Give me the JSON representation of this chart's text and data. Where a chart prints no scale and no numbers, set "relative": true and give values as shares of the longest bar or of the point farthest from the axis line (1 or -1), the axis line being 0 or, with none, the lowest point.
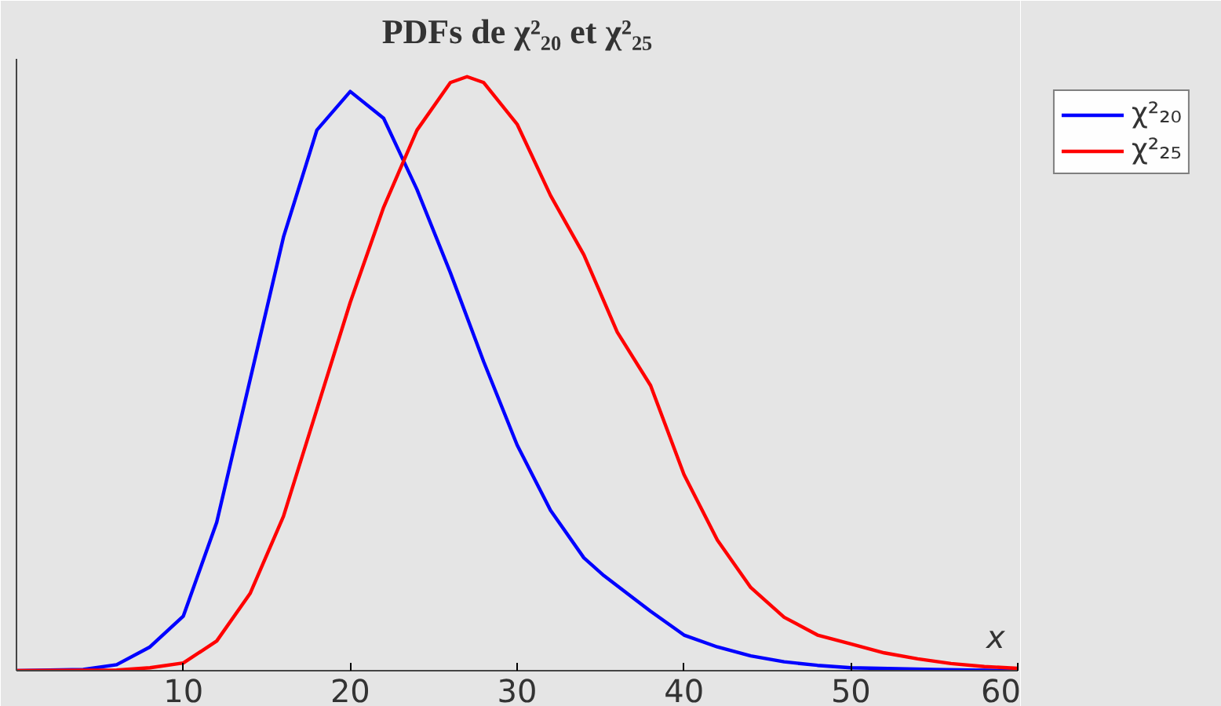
{
  "chart_data": {
    "type": "line",
    "title": "PDFs de χ²₂₀ et χ²₂₅",
    "xlabel": "x",
    "relative": true,
    "xlim": [
      0,
      60
    ],
    "xticks": [
      10,
      20,
      30,
      40,
      50,
      60
    ],
    "legend": "top right",
    "marker": "none",
    "line_style": "solid",
    "series": [
      {
        "name": "χ²₂₀",
        "color": "#0000ff",
        "x": [
          0,
          4,
          6,
          8,
          10,
          12,
          14,
          16,
          18,
          20,
          22,
          24,
          26,
          28,
          30,
          32,
          34,
          35.2,
          38,
          40,
          42,
          44,
          46,
          48,
          50,
          55,
          60
        ],
        "values": [
          0,
          0.002,
          0.01,
          0.04,
          0.092,
          0.25,
          0.49,
          0.73,
          0.91,
          0.975,
          0.93,
          0.81,
          0.67,
          0.52,
          0.38,
          0.27,
          0.19,
          0.16,
          0.1,
          0.06,
          0.04,
          0.025,
          0.015,
          0.009,
          0.005,
          0.002,
          0
        ]
      },
      {
        "name": "χ²₂₅",
        "color": "#ff0000",
        "x": [
          0,
          6,
          8,
          10,
          12,
          14,
          16,
          18,
          20,
          22,
          24,
          26,
          27,
          28,
          30,
          32,
          34,
          36,
          38,
          40,
          42,
          44,
          46,
          48,
          50,
          52,
          54,
          56,
          58,
          60
        ],
        "values": [
          0,
          0.001,
          0.005,
          0.013,
          0.05,
          0.13,
          0.26,
          0.44,
          0.62,
          0.78,
          0.91,
          0.99,
          1.0,
          0.99,
          0.92,
          0.8,
          0.7,
          0.57,
          0.48,
          0.33,
          0.22,
          0.14,
          0.09,
          0.06,
          0.045,
          0.03,
          0.02,
          0.012,
          0.007,
          0.004
        ]
      }
    ]
  }
}
